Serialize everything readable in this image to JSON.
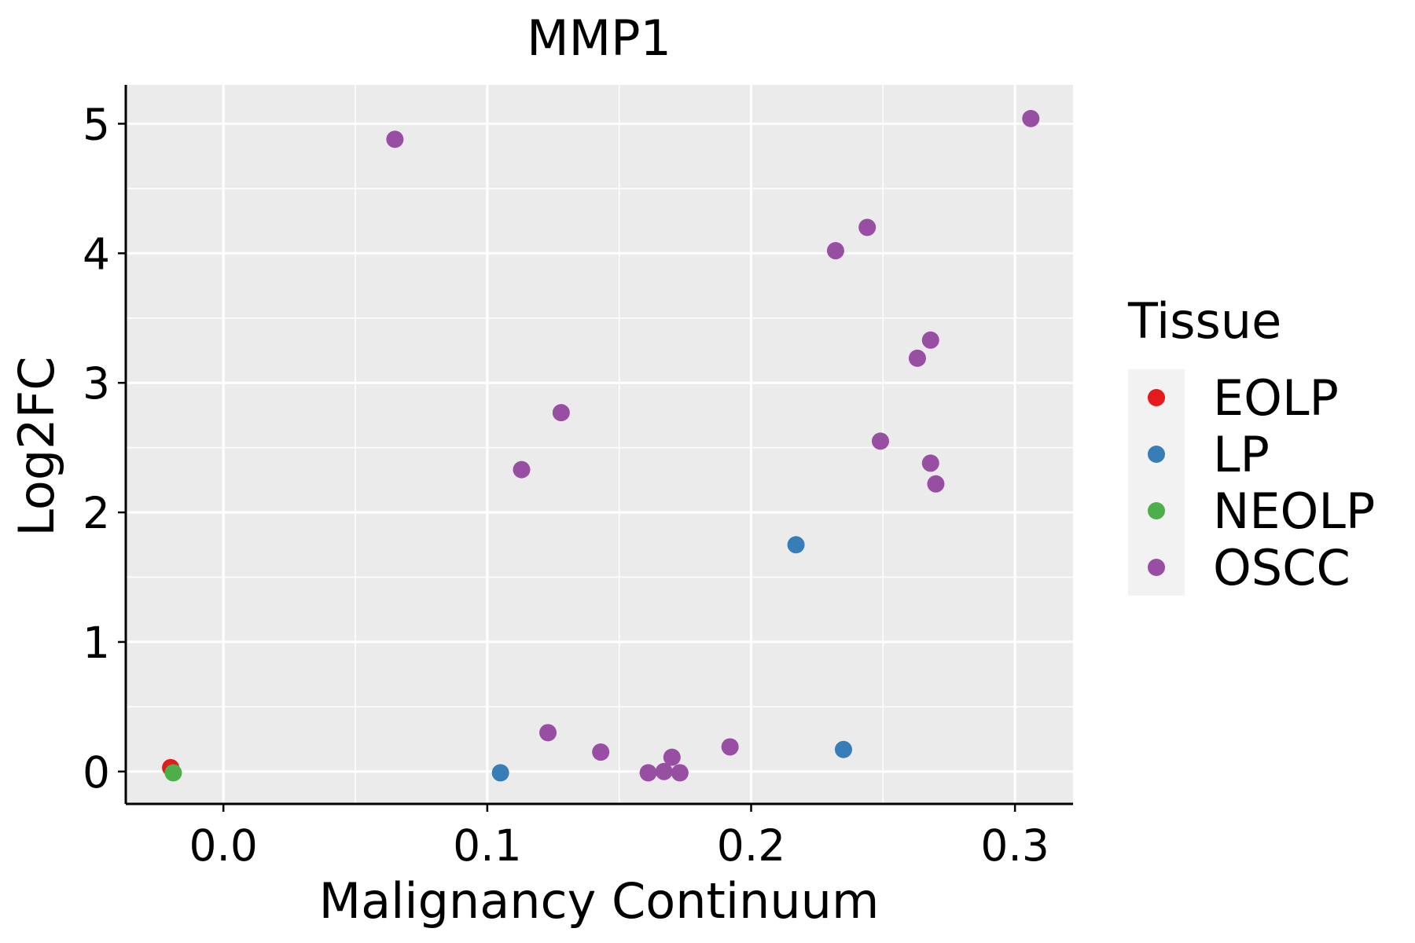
{
  "chart_data": {
    "type": "scatter",
    "title": "MMP1",
    "xlabel": "Malignancy Continuum",
    "ylabel": "Log2FC",
    "xlim": [
      -0.037,
      0.322
    ],
    "ylim": [
      -0.25,
      5.3
    ],
    "xticks": [
      0.0,
      0.1,
      0.2,
      0.3
    ],
    "xtick_labels": [
      "0.0",
      "0.1",
      "0.2",
      "0.3"
    ],
    "yticks": [
      0,
      1,
      2,
      3,
      4,
      5
    ],
    "ytick_labels": [
      "0",
      "1",
      "2",
      "3",
      "4",
      "5"
    ],
    "x_minor_ticks": [
      0.05,
      0.15,
      0.25
    ],
    "y_minor_ticks": [
      0.5,
      1.5,
      2.5,
      3.5,
      4.5
    ],
    "grid": true,
    "legend": {
      "title": "Tissue",
      "placement": "right"
    },
    "series": [
      {
        "name": "EOLP",
        "color": "#E41A1C",
        "points": [
          {
            "x": -0.02,
            "y": 0.03
          }
        ]
      },
      {
        "name": "LP",
        "color": "#377EB8",
        "points": [
          {
            "x": 0.105,
            "y": -0.01
          },
          {
            "x": 0.217,
            "y": 1.75
          },
          {
            "x": 0.235,
            "y": 0.17
          }
        ]
      },
      {
        "name": "NEOLP",
        "color": "#4DAF4A",
        "points": [
          {
            "x": -0.019,
            "y": -0.01
          }
        ]
      },
      {
        "name": "OSCC",
        "color": "#984EA3",
        "points": [
          {
            "x": 0.065,
            "y": 4.88
          },
          {
            "x": 0.306,
            "y": 5.04
          },
          {
            "x": 0.244,
            "y": 4.2
          },
          {
            "x": 0.232,
            "y": 4.02
          },
          {
            "x": 0.268,
            "y": 3.33
          },
          {
            "x": 0.263,
            "y": 3.19
          },
          {
            "x": 0.128,
            "y": 2.77
          },
          {
            "x": 0.113,
            "y": 2.33
          },
          {
            "x": 0.249,
            "y": 2.55
          },
          {
            "x": 0.268,
            "y": 2.38
          },
          {
            "x": 0.27,
            "y": 2.22
          },
          {
            "x": 0.123,
            "y": 0.3
          },
          {
            "x": 0.143,
            "y": 0.15
          },
          {
            "x": 0.161,
            "y": -0.01
          },
          {
            "x": 0.167,
            "y": 0.0
          },
          {
            "x": 0.17,
            "y": 0.11
          },
          {
            "x": 0.173,
            "y": -0.01
          },
          {
            "x": 0.192,
            "y": 0.19
          }
        ]
      }
    ]
  }
}
